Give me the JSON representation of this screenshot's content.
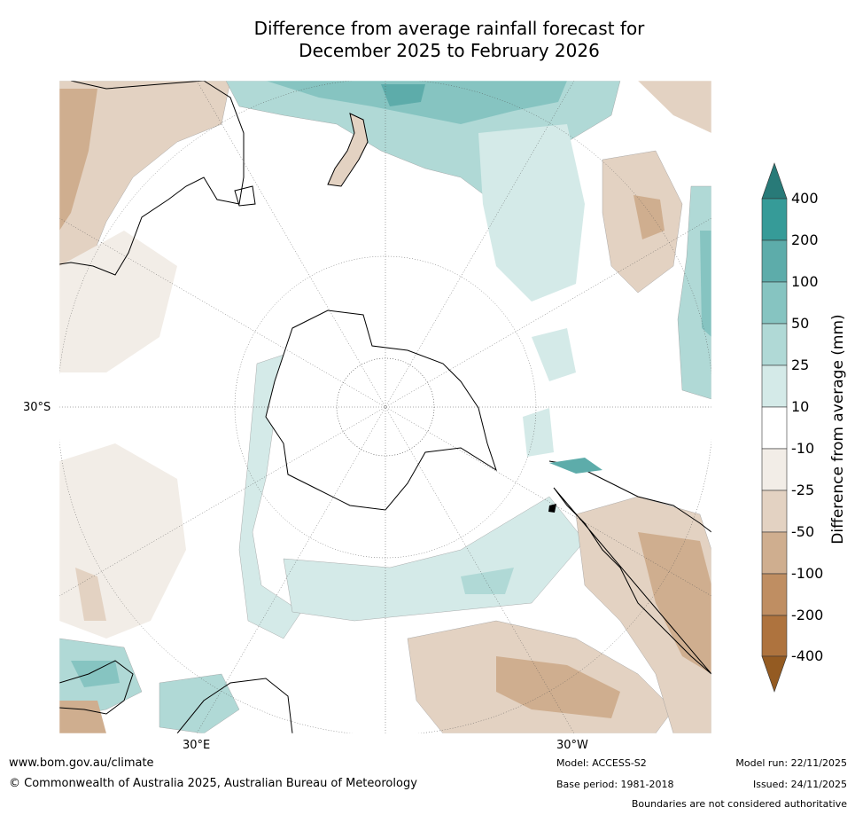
{
  "title": {
    "line1": "Difference from average rainfall forecast for",
    "line2": "December 2025 to February 2026"
  },
  "map_labels": {
    "lat_30s": "30°S",
    "lon_30e": "30°E",
    "lon_30w": "30°W"
  },
  "colorbar": {
    "title": "Difference from average (mm)",
    "ticks": [
      "400",
      "200",
      "100",
      "50",
      "25",
      "10",
      "-10",
      "-25",
      "-50",
      "-100",
      "-200",
      "-400"
    ],
    "colors": {
      "over": "#287a78",
      "b200_400": "#369b98",
      "b100_200": "#5dacaa",
      "b50_100": "#86c4c1",
      "b25_50": "#b0d9d6",
      "b10_25": "#d4eae8",
      "neutral": "#ffffff",
      "bm10_m25": "#f2ede7",
      "bm25_m50": "#e3d2c2",
      "bm50_m100": "#cfae8f",
      "bm100_m200": "#bf8e62",
      "bm200_m400": "#ae733e",
      "under": "#945b22"
    }
  },
  "footer": {
    "url": "www.bom.gov.au/climate",
    "copyright": "© Commonwealth of Australia 2025, Australian Bureau of Meteorology",
    "model": "Model: ACCESS-S2",
    "base_period": "Base period: 1981-2018",
    "model_run": "Model run: 22/11/2025",
    "issued": "Issued: 24/11/2025",
    "disclaimer": "Boundaries are not considered authoritative"
  }
}
